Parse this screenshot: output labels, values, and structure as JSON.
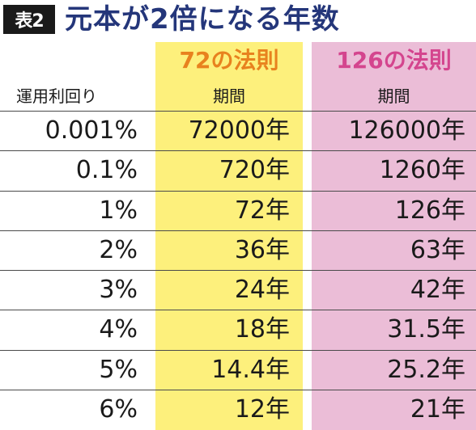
{
  "header": {
    "badge": "表2",
    "title": "元本が2倍になる年数"
  },
  "columns": {
    "rate_label": "運用利回り",
    "rule72_title": "72の法則",
    "rule72_sub": "期間",
    "rule126_title": "126の法則",
    "rule126_sub": "期間"
  },
  "colors": {
    "title": "#24367a",
    "rule72_bg": "#fdf07c",
    "rule72_title": "#e8821e",
    "rule126_bg": "#ebbdd7",
    "rule126_title": "#d4458e"
  },
  "rows": [
    {
      "rate": "0.001%",
      "r72": "72000年",
      "r126": "126000年"
    },
    {
      "rate": "0.1%",
      "r72": "720年",
      "r126": "1260年"
    },
    {
      "rate": "1%",
      "r72": "72年",
      "r126": "126年"
    },
    {
      "rate": "2%",
      "r72": "36年",
      "r126": "63年"
    },
    {
      "rate": "3%",
      "r72": "24年",
      "r126": "42年"
    },
    {
      "rate": "4%",
      "r72": "18年",
      "r126": "31.5年"
    },
    {
      "rate": "5%",
      "r72": "14.4年",
      "r126": "25.2年"
    },
    {
      "rate": "6%",
      "r72": "12年",
      "r126": "21年"
    }
  ]
}
